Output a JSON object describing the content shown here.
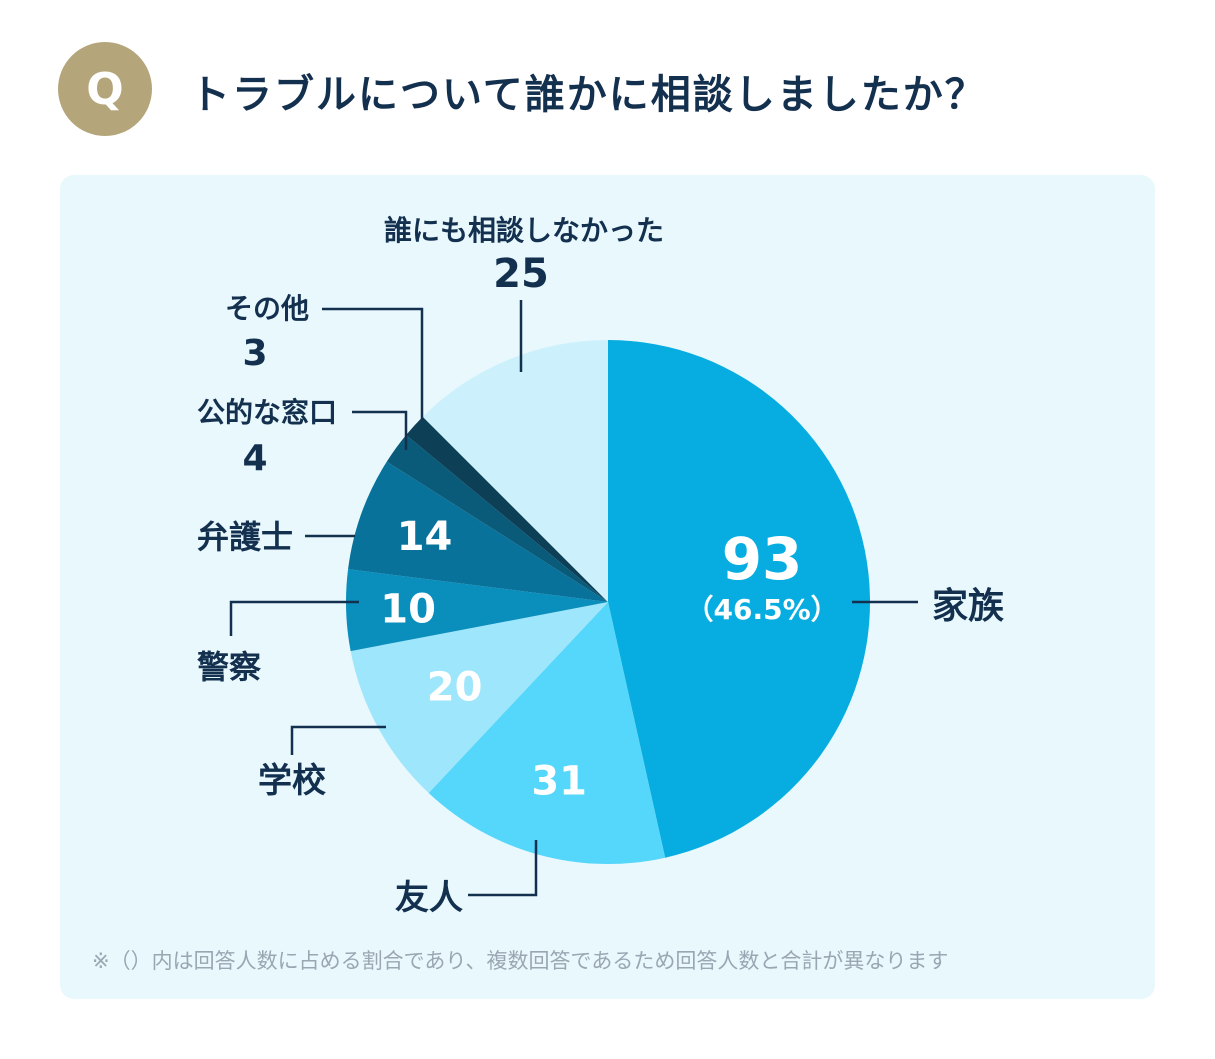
{
  "header": {
    "badge": "Q",
    "title": "トラブルについて誰かに相談しましたか？"
  },
  "chart_data": {
    "type": "pie",
    "start": "12 o'clock, clockwise",
    "slices": [
      {
        "label": "家族",
        "value": 93,
        "value_label": "93",
        "percent_label": "（46.5%）",
        "color": "#07ade0"
      },
      {
        "label": "友人",
        "value": 31,
        "value_label": "31",
        "color": "#55d6fb"
      },
      {
        "label": "学校",
        "value": 20,
        "value_label": "20",
        "color": "#9ee6fb"
      },
      {
        "label": "警察",
        "value": 10,
        "value_label": "10",
        "color": "#0a8fbd"
      },
      {
        "label": "弁護士",
        "value": 14,
        "value_label": "14",
        "color": "#08729a"
      },
      {
        "label": "公的な窓口",
        "value": 4,
        "value_label": "4",
        "color": "#0a5a79"
      },
      {
        "label": "その他",
        "value": 3,
        "value_label": "3",
        "color": "#0d3f57"
      },
      {
        "label": "誰にも相談しなかった",
        "value": 25,
        "value_label": "25",
        "color": "#cdf1fc"
      }
    ]
  },
  "footnote": "※（）内は回答人数に占める割合であり、複数回答であるため回答人数と合計が異なります"
}
